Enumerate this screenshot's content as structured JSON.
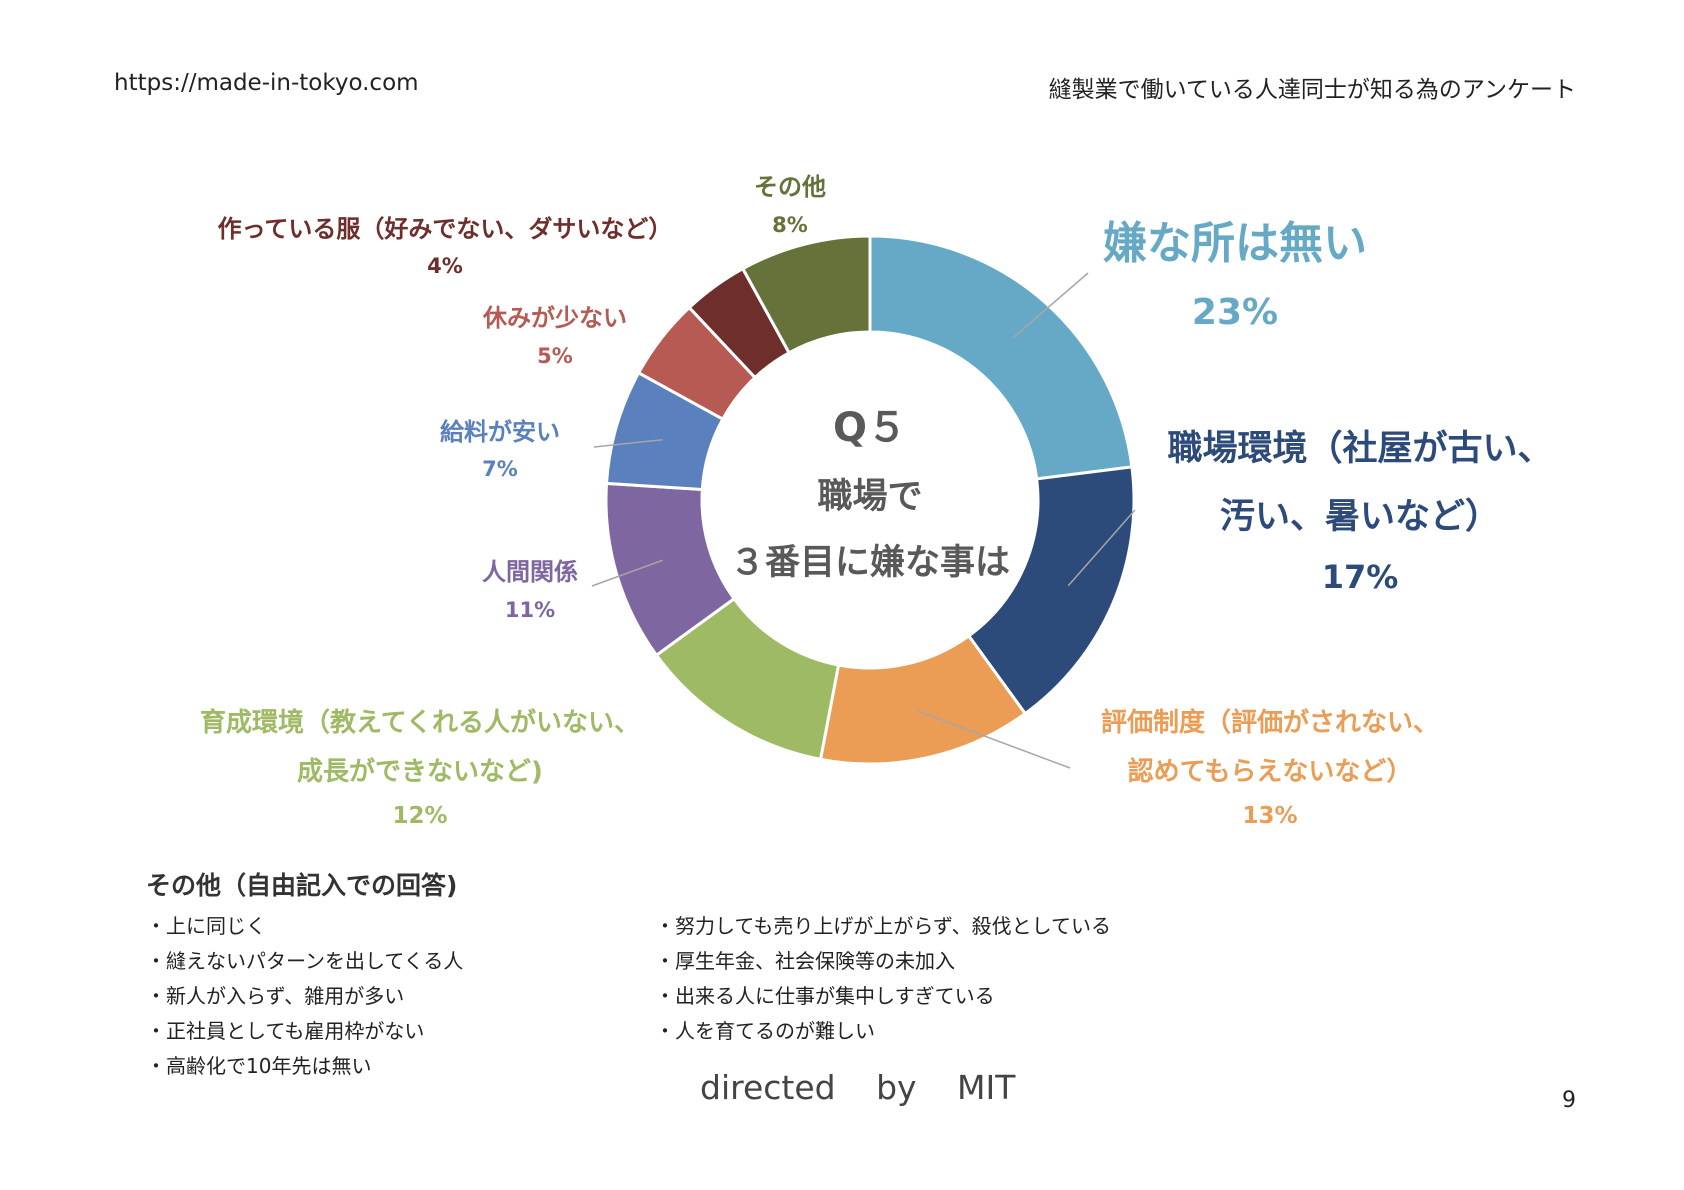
{
  "header": {
    "url": "https://made-in-tokyo.com",
    "survey_title": "縫製業で働いている人達同士が知る為のアンケート"
  },
  "center": {
    "q": "Q５",
    "line1": "職場で",
    "line2": "３番目に嫌な事は"
  },
  "chart_data": {
    "type": "pie",
    "donut": true,
    "start": "top, clockwise",
    "slices": [
      {
        "label": "嫌な所は無い",
        "label2": "",
        "percent_label": "23%",
        "value": 23,
        "color": "#65A9C6"
      },
      {
        "label": "職場環境（社屋が古い、",
        "label2": "汚い、暑いなど）",
        "percent_label": "17%",
        "value": 17,
        "color": "#2C4A7A"
      },
      {
        "label": "評価制度（評価がされない、",
        "label2": "認めてもらえないなど）",
        "percent_label": "13%",
        "value": 13,
        "color": "#EB9C55"
      },
      {
        "label": "育成環境（教えてくれる人がいない、",
        "label2": "成長ができないなど)",
        "percent_label": "12%",
        "value": 12,
        "color": "#9FBA64"
      },
      {
        "label": "人間関係",
        "label2": "",
        "percent_label": "11%",
        "value": 11,
        "color": "#7E66A0"
      },
      {
        "label": "給料が安い",
        "label2": "",
        "percent_label": "7%",
        "value": 7,
        "color": "#5A80BE"
      },
      {
        "label": "休みが少ない",
        "label2": "",
        "percent_label": "5%",
        "value": 5,
        "color": "#B65A53"
      },
      {
        "label": "作っている服（好みでない、ダサいなど）",
        "label2": "",
        "percent_label": "4%",
        "value": 4,
        "color": "#6E2E2C"
      },
      {
        "label": "その他",
        "label2": "",
        "percent_label": "8%",
        "value": 8,
        "color": "#65723A"
      }
    ]
  },
  "notes": {
    "title": "その他（自由記入での回答)",
    "left": [
      "・上に同じく",
      "・縫えないパターンを出してくる人",
      "・新人が入らず、雑用が多い",
      "・正社員としても雇用枠がない",
      "・高齢化で10年先は無い"
    ],
    "right": [
      "・努力しても売り上げが上がらず、殺伐としている",
      "・厚生年金、社会保険等の未加入",
      "・出来る人に仕事が集中しすぎている",
      "・人を育てるのが難しい"
    ]
  },
  "footer": "directed by MIT",
  "page_number": "9"
}
